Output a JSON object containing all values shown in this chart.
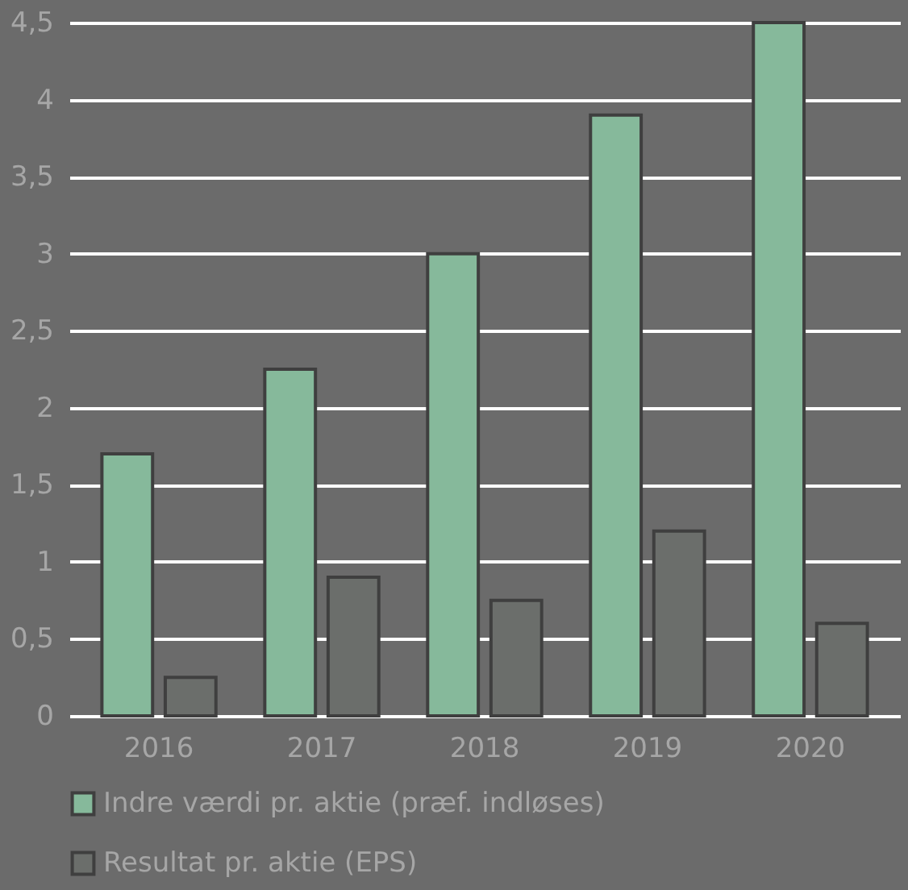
{
  "chart_data": {
    "type": "bar",
    "categories": [
      "2016",
      "2017",
      "2018",
      "2019",
      "2020"
    ],
    "series": [
      {
        "name": "Indre værdi pr. aktie (præf. indløses)",
        "color": "#86b99b",
        "values": [
          1.7,
          2.25,
          3.0,
          3.9,
          4.5
        ]
      },
      {
        "name": "Resultat pr. aktie (EPS)",
        "color": "#6b6e6b",
        "values": [
          0.25,
          0.9,
          0.75,
          1.2,
          0.6
        ]
      }
    ],
    "ylim": [
      0,
      4.5
    ],
    "yticks": [
      0,
      {
        "value": 0.5,
        "label": "0,5"
      },
      1,
      {
        "value": 1.5,
        "label": "1,5"
      },
      2,
      {
        "value": 2.5,
        "label": "2,5"
      },
      3,
      {
        "value": 3.5,
        "label": "3,5"
      },
      4,
      {
        "value": 4.5,
        "label": "4,5"
      }
    ],
    "grid": "y",
    "legend": "bottom"
  }
}
